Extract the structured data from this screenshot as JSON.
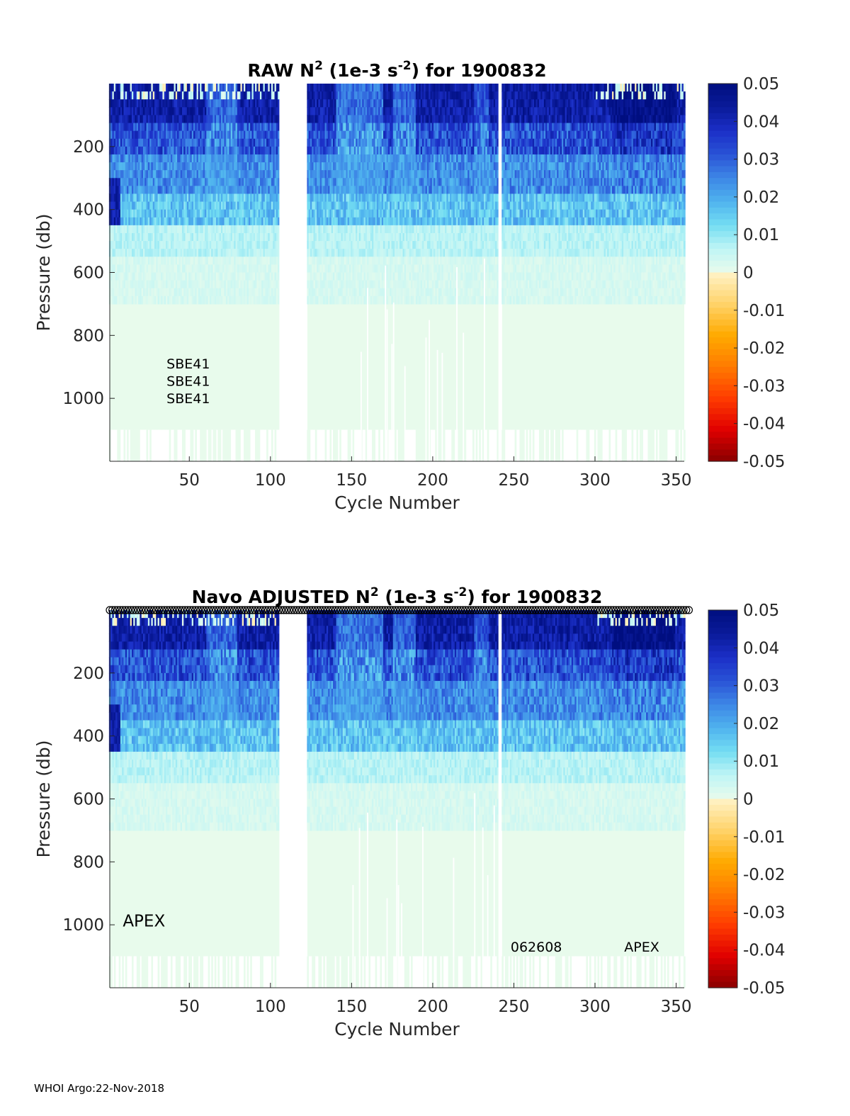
{
  "footer": "WHOI Argo:22-Nov-2018",
  "colors": {
    "background": "#ffffff",
    "axis": "#262626",
    "deep": "#e8fbec",
    "cmap_pos": [
      "#e8fbec",
      "#bff5f5",
      "#73ddf2",
      "#4fb3ee",
      "#3d86e6",
      "#2952d6",
      "#1b2fc7",
      "#0a1a99",
      "#000e80"
    ],
    "cmap_neg": [
      "#fff3c8",
      "#ffd36a",
      "#ffaa00",
      "#ff7a00",
      "#ff3c00",
      "#e00000",
      "#8a0000"
    ]
  },
  "chart_data": [
    {
      "type": "heatmap",
      "id": "raw",
      "title": {
        "prefix": "RAW N",
        "sup1": "2",
        "mid": " (1e-3 s",
        "sup2": "-2",
        "suffix": ") for 1900832"
      },
      "xlabel": "Cycle Number",
      "ylabel": "Pressure (db)",
      "xlim": [
        1,
        355
      ],
      "ylim": [
        0,
        1200
      ],
      "y_reversed": true,
      "xticks": [
        50,
        100,
        150,
        200,
        250,
        300,
        350
      ],
      "xtick_labels": [
        "50",
        "100",
        "150",
        "200",
        "250",
        "300",
        "350"
      ],
      "yticks": [
        200,
        400,
        600,
        800,
        1000
      ],
      "ytick_labels": [
        "200",
        "400",
        "600",
        "800",
        "1000"
      ],
      "annotations": [
        {
          "text": "SBE41",
          "x": 36,
          "y": 905
        },
        {
          "text": "SBE41",
          "x": 36,
          "y": 960
        },
        {
          "text": "SBE41",
          "x": 36,
          "y": 1015
        }
      ],
      "top_markers": false,
      "colorbar": {
        "clim": [
          -0.05,
          0.05
        ],
        "ticks": [
          0.05,
          0.04,
          0.03,
          0.02,
          0.01,
          0,
          -0.01,
          -0.02,
          -0.03,
          -0.04,
          -0.05
        ],
        "tick_labels": [
          "0.05",
          "0.04",
          "0.03",
          "0.02",
          "0.01",
          "0",
          "-0.01",
          "-0.02",
          "-0.03",
          "-0.04",
          "-0.05"
        ]
      },
      "missing_cycles": [
        [
          106,
          122
        ],
        [
          241,
          242
        ]
      ]
    },
    {
      "type": "heatmap",
      "id": "adjusted",
      "title": {
        "prefix": "Navo  ADJUSTED N",
        "sup1": "2",
        "mid": " (1e-3 s",
        "sup2": "-2",
        "suffix": ") for 1900832"
      },
      "xlabel": "Cycle Number",
      "ylabel": "Pressure (db)",
      "xlim": [
        1,
        355
      ],
      "ylim": [
        0,
        1200
      ],
      "y_reversed": true,
      "xticks": [
        50,
        100,
        150,
        200,
        250,
        300,
        350
      ],
      "xtick_labels": [
        "50",
        "100",
        "150",
        "200",
        "250",
        "300",
        "350"
      ],
      "yticks": [
        200,
        400,
        600,
        800,
        1000
      ],
      "ytick_labels": [
        "200",
        "400",
        "600",
        "800",
        "1000"
      ],
      "annotations": [
        {
          "text": "APEX",
          "x": 9,
          "y": 1005,
          "size": "large"
        },
        {
          "text": "062608",
          "x": 248,
          "y": 1085
        },
        {
          "text": "APEX",
          "x": 318,
          "y": 1085
        }
      ],
      "top_markers": true,
      "colorbar": {
        "clim": [
          -0.05,
          0.05
        ],
        "ticks": [
          0.05,
          0.04,
          0.03,
          0.02,
          0.01,
          0,
          -0.01,
          -0.02,
          -0.03,
          -0.04,
          -0.05
        ],
        "tick_labels": [
          "0.05",
          "0.04",
          "0.03",
          "0.02",
          "0.01",
          "0",
          "-0.01",
          "-0.02",
          "-0.03",
          "-0.04",
          "-0.05"
        ]
      },
      "missing_cycles": [
        [
          106,
          122
        ],
        [
          241,
          242
        ]
      ]
    }
  ]
}
